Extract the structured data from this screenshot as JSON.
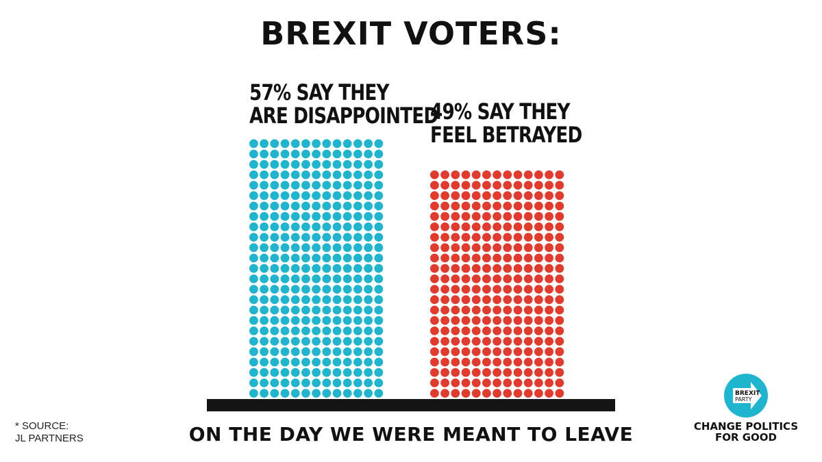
{
  "title": "BREXIT VOTERS:",
  "bars": [
    {
      "line1": "57% SAY THEY",
      "line2": "ARE DISAPPOINTED",
      "color": "#20b5cf"
    },
    {
      "line1": "49% SAY THEY",
      "line2": "FEEL BETRAYED",
      "color": "#e23b2e"
    }
  ],
  "caption": "ON THE DAY WE WERE MEANT TO LEAVE",
  "source": {
    "line1": "* SOURCE:",
    "line2": "JL PARTNERS"
  },
  "logo": {
    "line1": "BREXIT",
    "line2": "PARTY",
    "tag1": "CHANGE POLITICS",
    "tag2": "FOR GOOD",
    "color": "#20b5cf"
  },
  "chart_data": {
    "type": "bar",
    "title": "BREXIT VOTERS:",
    "categories": [
      "57% SAY THEY ARE DISAPPOINTED",
      "49% SAY THEY FEEL BETRAYED"
    ],
    "values": [
      57,
      49
    ],
    "colors": [
      "#20b5cf",
      "#e23b2e"
    ],
    "xlabel": "ON THE DAY WE WERE MEANT TO LEAVE",
    "ylabel": "",
    "ylim": [
      0,
      57
    ],
    "grid": false
  }
}
